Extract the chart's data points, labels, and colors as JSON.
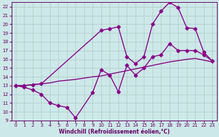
{
  "title": "",
  "xlabel": "Windchill (Refroidissement éolien,°C)",
  "ylabel": "",
  "background_color": "#cde8e8",
  "grid_color": "#b0d0cc",
  "line_color": "#880088",
  "xlim": [
    -0.5,
    23.5
  ],
  "ylim": [
    9,
    22.5
  ],
  "xticks": [
    0,
    1,
    2,
    3,
    4,
    5,
    6,
    7,
    8,
    9,
    10,
    11,
    12,
    13,
    14,
    15,
    16,
    17,
    18,
    19,
    20,
    21,
    22,
    23
  ],
  "yticks": [
    9,
    10,
    11,
    12,
    13,
    14,
    15,
    16,
    17,
    18,
    19,
    20,
    21,
    22
  ],
  "line1_x": [
    0,
    1,
    2,
    3,
    4,
    5,
    6,
    7,
    9,
    10,
    11,
    12,
    13,
    14,
    15,
    16,
    17,
    18,
    19,
    20,
    21,
    22,
    23
  ],
  "line1_y": [
    13,
    12.8,
    12.5,
    12.0,
    11.0,
    10.7,
    10.5,
    9.3,
    12.2,
    14.8,
    14.2,
    12.3,
    15.3,
    14.2,
    15.0,
    16.3,
    16.5,
    17.8,
    17.0,
    17.0,
    17.0,
    16.5,
    15.8
  ],
  "line2_x": [
    0,
    1,
    2,
    3,
    10,
    11,
    12,
    13,
    14,
    15,
    16,
    17,
    18,
    19,
    20,
    21,
    22,
    23
  ],
  "line2_y": [
    13,
    13.0,
    13.1,
    13.2,
    19.3,
    19.5,
    19.7,
    16.3,
    15.5,
    16.3,
    20.0,
    21.5,
    22.5,
    21.9,
    19.6,
    19.5,
    16.8,
    15.8
  ],
  "line3_x": [
    0,
    1,
    2,
    3,
    4,
    5,
    6,
    7,
    8,
    9,
    10,
    11,
    12,
    13,
    14,
    15,
    16,
    17,
    18,
    19,
    20,
    21,
    22,
    23
  ],
  "line3_y": [
    13,
    13.0,
    13.1,
    13.2,
    13.3,
    13.5,
    13.6,
    13.7,
    13.85,
    14.0,
    14.1,
    14.3,
    14.5,
    14.7,
    14.9,
    15.1,
    15.3,
    15.5,
    15.7,
    15.85,
    16.0,
    16.1,
    15.9,
    15.7
  ],
  "marker": "D",
  "marker_size": 2.5,
  "line_width": 1.0,
  "tick_fontsize": 5.0,
  "xlabel_fontsize": 5.5
}
